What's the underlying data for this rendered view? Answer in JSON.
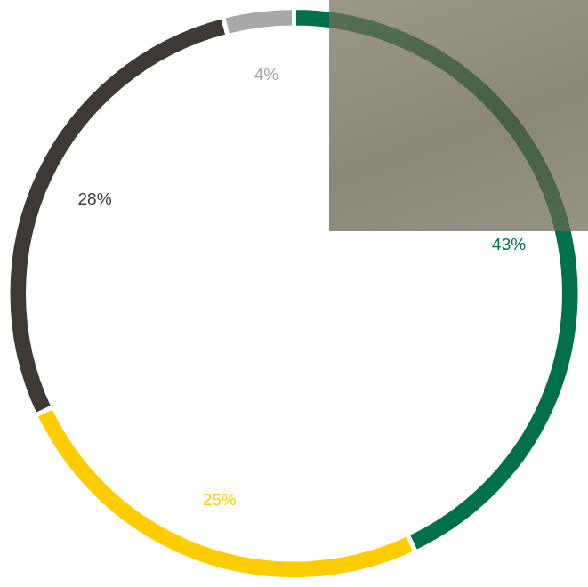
{
  "chart_data": {
    "type": "doughnut",
    "values": [
      43,
      25,
      28,
      4
    ],
    "value_labels": [
      "43%",
      "25%",
      "28%",
      "4%"
    ],
    "colors": [
      "#00704a",
      "#ffcc00",
      "#3e3935",
      "#a8a8a8"
    ],
    "data_labels": true,
    "legend": false
  }
}
